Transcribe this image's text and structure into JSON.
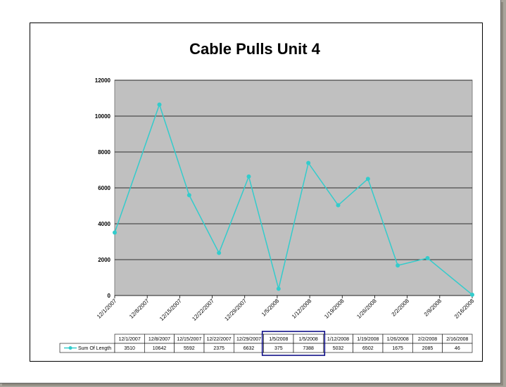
{
  "chart_data": {
    "type": "line",
    "title": "Cable Pulls Unit 4",
    "xlabel": "",
    "ylabel": "",
    "ylim": [
      0,
      12000
    ],
    "yticks": [
      0,
      2000,
      4000,
      6000,
      8000,
      10000,
      12000
    ],
    "grid": true,
    "x_axis_labels": [
      "12/1/2007",
      "12/8/2007",
      "12/15/2007",
      "12/22/2007",
      "12/29/2007",
      "1/5/2008",
      "1/12/2008",
      "1/19/2008",
      "1/26/2008",
      "2/2/2008",
      "2/9/2008",
      "2/16/2008"
    ],
    "x": [
      "12/1/2007",
      "12/8/2007",
      "12/15/2007",
      "12/22/2007",
      "12/29/2007",
      "1/5/2008",
      "1/5/2008",
      "1/12/2008",
      "1/19/2008",
      "1/26/2008",
      "2/2/2008",
      "2/16/2008"
    ],
    "series": [
      {
        "name": "Sum Of Length",
        "values": [
          3510,
          10642,
          5592,
          2375,
          6632,
          375,
          7388,
          5032,
          6502,
          1675,
          2085,
          46
        ],
        "color": "#33cccc"
      }
    ],
    "data_table": {
      "headers": [
        "12/1/2007",
        "12/8/2007",
        "12/15/2007",
        "12/22/2007",
        "12/29/2007",
        "1/5/2008",
        "1/5/2008",
        "1/12/2008",
        "1/19/2008",
        "1/26/2008",
        "2/2/2008",
        "2/16/2008"
      ],
      "highlighted_columns": [
        5,
        6
      ],
      "highlight_color": "#000080"
    },
    "plot_background": "#c0c0c0"
  }
}
